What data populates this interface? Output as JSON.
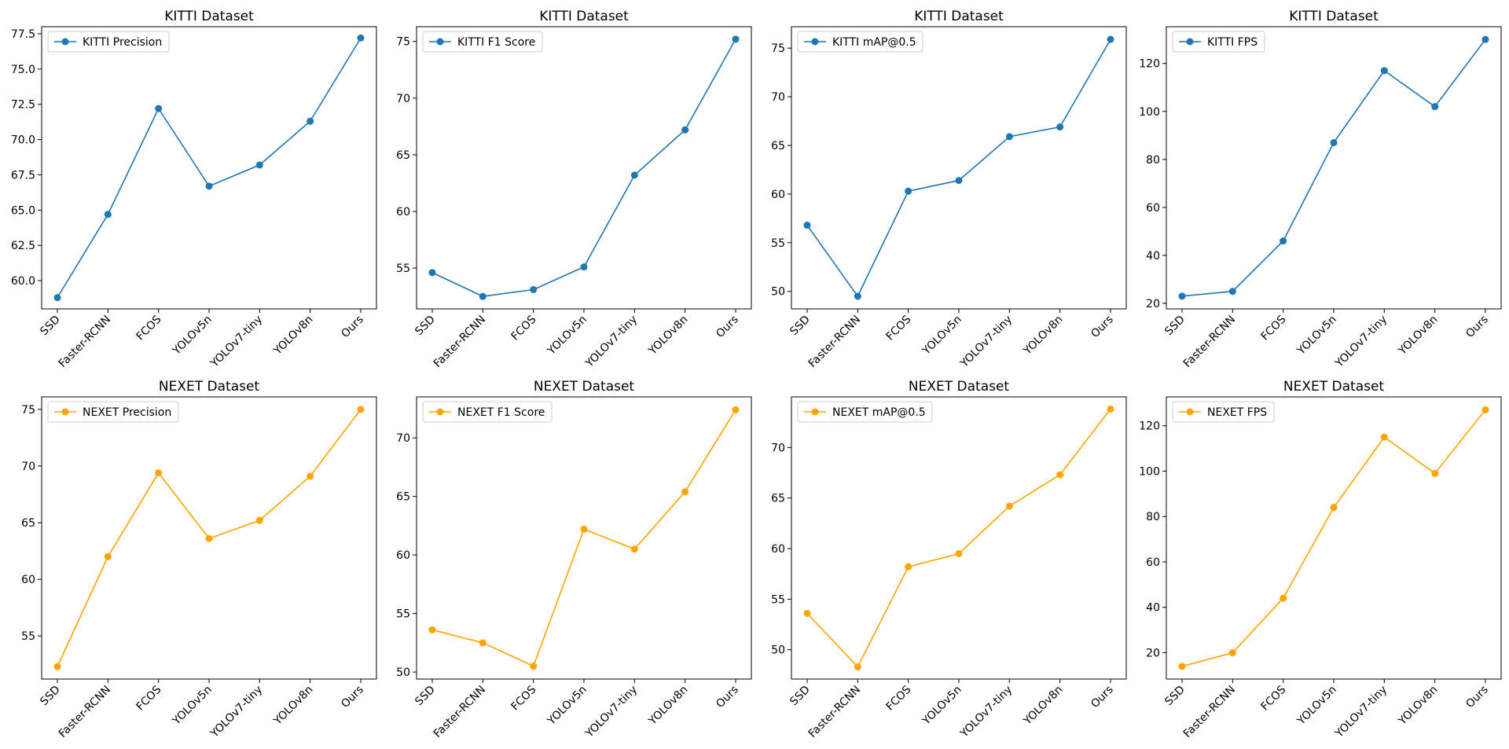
{
  "chart_data": [
    {
      "type": "line",
      "title": "KITTI Dataset",
      "categories": [
        "SSD",
        "Faster-RCNN",
        "FCOS",
        "YOLOv5n",
        "YOLOv7-tiny",
        "YOLOv8n",
        "Ours"
      ],
      "series": [
        {
          "name": "KITTI Precision",
          "values": [
            58.8,
            64.7,
            72.2,
            66.7,
            68.2,
            71.3,
            77.2
          ],
          "color": "#1f77b4"
        }
      ],
      "ylim": [
        58.0,
        78.0
      ],
      "yticks": [
        60.0,
        62.5,
        65.0,
        67.5,
        70.0,
        72.5,
        75.0,
        77.5
      ],
      "yticklabels": [
        "60.0",
        "62.5",
        "65.0",
        "67.5",
        "70.0",
        "72.5",
        "75.0",
        "77.5"
      ],
      "legend": "upper-left",
      "grid": false
    },
    {
      "type": "line",
      "title": "KITTI Dataset",
      "categories": [
        "SSD",
        "Faster-RCNN",
        "FCOS",
        "YOLOv5n",
        "YOLOv7-tiny",
        "YOLOv8n",
        "Ours"
      ],
      "series": [
        {
          "name": "KITTI F1 Score",
          "values": [
            54.6,
            52.5,
            53.1,
            55.1,
            63.2,
            67.2,
            75.2
          ],
          "color": "#1f77b4"
        }
      ],
      "ylim": [
        51.4,
        76.3
      ],
      "yticks": [
        55,
        60,
        65,
        70,
        75
      ],
      "yticklabels": [
        "55",
        "60",
        "65",
        "70",
        "75"
      ],
      "legend": "upper-left",
      "grid": false
    },
    {
      "type": "line",
      "title": "KITTI Dataset",
      "categories": [
        "SSD",
        "Faster-RCNN",
        "FCOS",
        "YOLOv5n",
        "YOLOv7-tiny",
        "YOLOv8n",
        "Ours"
      ],
      "series": [
        {
          "name": "KITTI mAP@0.5",
          "values": [
            56.8,
            49.5,
            60.3,
            61.4,
            65.9,
            66.9,
            75.9
          ],
          "color": "#1f77b4"
        }
      ],
      "ylim": [
        48.2,
        77.2
      ],
      "yticks": [
        50,
        55,
        60,
        65,
        70,
        75
      ],
      "yticklabels": [
        "50",
        "55",
        "60",
        "65",
        "70",
        "75"
      ],
      "legend": "upper-left",
      "grid": false
    },
    {
      "type": "line",
      "title": "KITTI Dataset",
      "categories": [
        "SSD",
        "Faster-RCNN",
        "FCOS",
        "YOLOv5n",
        "YOLOv7-tiny",
        "YOLOv8n",
        "Ours"
      ],
      "series": [
        {
          "name": "KITTI FPS",
          "values": [
            23,
            25,
            46,
            87,
            117,
            102,
            130
          ],
          "color": "#1f77b4"
        }
      ],
      "ylim": [
        17.7,
        135.3
      ],
      "yticks": [
        20,
        40,
        60,
        80,
        100,
        120
      ],
      "yticklabels": [
        "20",
        "40",
        "60",
        "80",
        "100",
        "120"
      ],
      "legend": "upper-left",
      "grid": false
    },
    {
      "type": "line",
      "title": "NEXET Dataset",
      "categories": [
        "SSD",
        "Faster-RCNN",
        "FCOS",
        "YOLOv5n",
        "YOLOv7-tiny",
        "YOLOv8n",
        "Ours"
      ],
      "series": [
        {
          "name": "NEXET Precision",
          "values": [
            52.3,
            62.0,
            69.4,
            63.6,
            65.2,
            69.1,
            75.0
          ],
          "color": "#ffa500"
        }
      ],
      "ylim": [
        51.2,
        76.1
      ],
      "yticks": [
        55,
        60,
        65,
        70,
        75
      ],
      "yticklabels": [
        "55",
        "60",
        "65",
        "70",
        "75"
      ],
      "legend": "upper-left",
      "grid": false
    },
    {
      "type": "line",
      "title": "NEXET Dataset",
      "categories": [
        "SSD",
        "Faster-RCNN",
        "FCOS",
        "YOLOv5n",
        "YOLOv7-tiny",
        "YOLOv8n",
        "Ours"
      ],
      "series": [
        {
          "name": "NEXET F1 Score",
          "values": [
            53.6,
            52.5,
            50.5,
            62.2,
            60.5,
            65.4,
            72.4
          ],
          "color": "#ffa500"
        }
      ],
      "ylim": [
        49.4,
        73.5
      ],
      "yticks": [
        50,
        55,
        60,
        65,
        70
      ],
      "yticklabels": [
        "50",
        "55",
        "60",
        "65",
        "70"
      ],
      "legend": "upper-left",
      "grid": false
    },
    {
      "type": "line",
      "title": "NEXET Dataset",
      "categories": [
        "SSD",
        "Faster-RCNN",
        "FCOS",
        "YOLOv5n",
        "YOLOv7-tiny",
        "YOLOv8n",
        "Ours"
      ],
      "series": [
        {
          "name": "NEXET mAP@0.5",
          "values": [
            53.6,
            48.3,
            58.2,
            59.5,
            64.2,
            67.3,
            73.8
          ],
          "color": "#ffa500"
        }
      ],
      "ylim": [
        47.1,
        75.0
      ],
      "yticks": [
        50,
        55,
        60,
        65,
        70
      ],
      "yticklabels": [
        "50",
        "55",
        "60",
        "65",
        "70"
      ],
      "legend": "upper-left",
      "grid": false
    },
    {
      "type": "line",
      "title": "NEXET Dataset",
      "categories": [
        "SSD",
        "Faster-RCNN",
        "FCOS",
        "YOLOv5n",
        "YOLOv7-tiny",
        "YOLOv8n",
        "Ours"
      ],
      "series": [
        {
          "name": "NEXET FPS",
          "values": [
            14,
            20,
            44,
            84,
            115,
            99,
            127
          ],
          "color": "#ffa500"
        }
      ],
      "ylim": [
        8.4,
        132.7
      ],
      "yticks": [
        20,
        40,
        60,
        80,
        100,
        120
      ],
      "yticklabels": [
        "20",
        "40",
        "60",
        "80",
        "100",
        "120"
      ],
      "legend": "upper-left",
      "grid": false
    }
  ]
}
